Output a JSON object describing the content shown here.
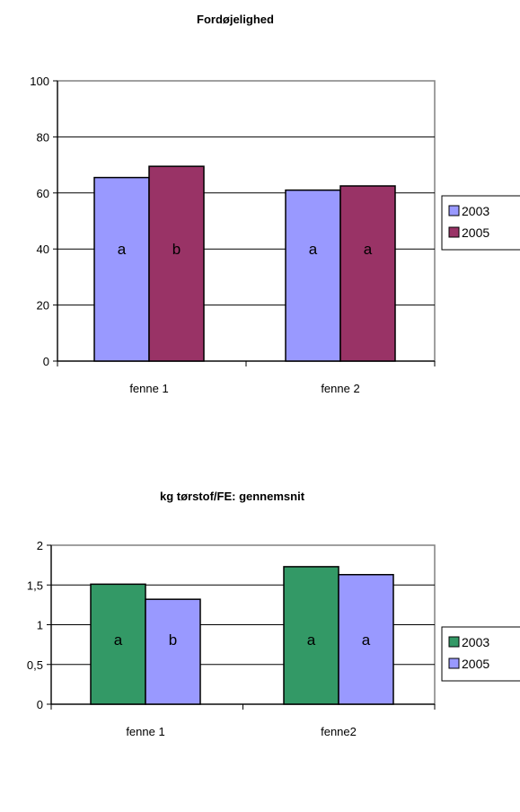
{
  "chart_data": [
    {
      "type": "bar",
      "title": "Fordøjelighed",
      "xlabel": "",
      "ylabel": "",
      "categories": [
        "fenne 1",
        "fenne 2"
      ],
      "ylim": [
        0,
        100
      ],
      "yticks": [
        0,
        20,
        40,
        60,
        80,
        100
      ],
      "ytick_labels": [
        "0",
        "20",
        "40",
        "60",
        "80",
        "100"
      ],
      "series": [
        {
          "name": "2003",
          "values": [
            65.5,
            61
          ],
          "labels": [
            "a",
            "a"
          ],
          "color": "#9999ff"
        },
        {
          "name": "2005",
          "values": [
            69.5,
            62.5
          ],
          "labels": [
            "b",
            "a"
          ],
          "color": "#993366"
        }
      ],
      "grid": true,
      "legend": "right"
    },
    {
      "type": "bar",
      "title": "kg tørstof/FE: gennemsnit",
      "xlabel": "",
      "ylabel": "",
      "categories": [
        "fenne 1",
        "fenne2"
      ],
      "ylim": [
        0,
        2
      ],
      "yticks": [
        0,
        0.5,
        1,
        1.5,
        2
      ],
      "ytick_labels": [
        "0",
        "0,5",
        "1",
        "1,5",
        "2"
      ],
      "series": [
        {
          "name": "2003",
          "values": [
            1.51,
            1.73
          ],
          "labels": [
            "a",
            "a"
          ],
          "color": "#339966"
        },
        {
          "name": "2005",
          "values": [
            1.32,
            1.63
          ],
          "labels": [
            "b",
            "a"
          ],
          "color": "#9999ff"
        }
      ],
      "grid": true,
      "legend": "right"
    }
  ]
}
